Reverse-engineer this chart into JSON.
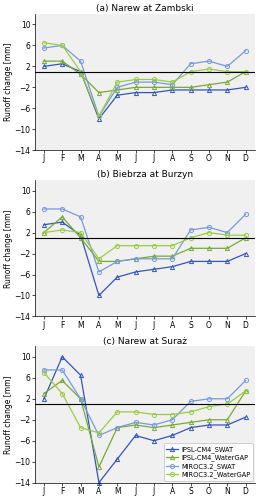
{
  "months": [
    "J",
    "F",
    "M",
    "A",
    "M",
    "J",
    "J",
    "A",
    "S",
    "O",
    "N",
    "D"
  ],
  "panels": [
    {
      "title": "(a) Narew at Zambski",
      "IPSL_CM4_SWAT": [
        2.0,
        2.5,
        1.0,
        -8.0,
        -3.5,
        -3.0,
        -3.0,
        -2.5,
        -2.5,
        -2.5,
        -2.5,
        -2.0
      ],
      "IPSL_CM4_WaterGAP": [
        3.0,
        3.0,
        0.5,
        -3.0,
        -2.5,
        -2.0,
        -2.0,
        -2.0,
        -2.0,
        -1.5,
        -1.0,
        1.0
      ],
      "MIROC32_SWAT": [
        5.5,
        6.0,
        3.0,
        -7.5,
        -2.0,
        -1.0,
        -1.0,
        -1.5,
        2.5,
        3.0,
        2.0,
        5.0
      ],
      "MIROC32_WaterGAP": [
        6.5,
        6.0,
        1.0,
        -7.5,
        -1.0,
        -0.5,
        -0.5,
        -1.0,
        1.0,
        1.5,
        1.0,
        1.0
      ]
    },
    {
      "title": "(b) Biebrza at Burzyn",
      "IPSL_CM4_SWAT": [
        3.5,
        4.0,
        1.5,
        -10.0,
        -6.5,
        -5.5,
        -5.0,
        -4.5,
        -3.5,
        -3.5,
        -3.5,
        -2.0
      ],
      "IPSL_CM4_WaterGAP": [
        2.0,
        5.0,
        1.0,
        -3.5,
        -3.5,
        -3.0,
        -2.5,
        -2.5,
        -1.0,
        -1.0,
        -1.0,
        1.0
      ],
      "MIROC32_SWAT": [
        6.5,
        6.5,
        5.0,
        -5.5,
        -3.5,
        -3.0,
        -3.0,
        -3.0,
        2.5,
        3.0,
        2.0,
        5.5
      ],
      "MIROC32_WaterGAP": [
        2.0,
        2.5,
        2.0,
        -3.0,
        -0.5,
        -0.5,
        -0.5,
        -0.5,
        1.0,
        2.0,
        1.5,
        1.5
      ]
    },
    {
      "title": "(c) Narew at Suraż",
      "IPSL_CM4_SWAT": [
        2.0,
        10.0,
        6.5,
        -14.0,
        -9.5,
        -5.0,
        -6.0,
        -5.0,
        -3.5,
        -3.0,
        -3.0,
        -1.5
      ],
      "IPSL_CM4_WaterGAP": [
        3.0,
        5.5,
        2.0,
        -11.0,
        -3.5,
        -3.0,
        -3.5,
        -3.0,
        -2.5,
        -2.0,
        -2.0,
        3.5
      ],
      "MIROC32_SWAT": [
        7.5,
        7.5,
        2.0,
        -5.0,
        -3.5,
        -2.5,
        -3.0,
        -2.0,
        1.5,
        2.0,
        2.0,
        5.5
      ],
      "MIROC32_WaterGAP": [
        7.0,
        3.0,
        -3.5,
        -4.5,
        -0.5,
        -0.5,
        -1.0,
        -1.0,
        -0.5,
        0.5,
        1.0,
        3.5
      ]
    }
  ],
  "colors": {
    "IPSL_CM4_SWAT": "#3355bb",
    "IPSL_CM4_WaterGAP": "#77aa33",
    "MIROC32_SWAT": "#7799dd",
    "MIROC32_WaterGAP": "#99cc44"
  },
  "legend_labels": {
    "IPSL_CM4_SWAT": "IPSL-CM4_SWAT",
    "IPSL_CM4_WaterGAP": "IPSL-CM4_WaterGAP",
    "MIROC32_SWAT": "MIROC3.2_SWAT",
    "MIROC32_WaterGAP": "MIROC3.2_WaterGAP"
  },
  "ylim": [
    -14,
    12
  ],
  "yticks": [
    -14,
    -10,
    -6,
    -2,
    2,
    6,
    10
  ],
  "ylabel": "Runoff change [mm]",
  "hline_y": 1.0,
  "background_color": "#f0f0f0",
  "title_fontsize": 6.5,
  "tick_fontsize": 5.5,
  "ylabel_fontsize": 5.5,
  "legend_fontsize": 4.8,
  "linewidth": 0.9,
  "markersize": 3.0
}
